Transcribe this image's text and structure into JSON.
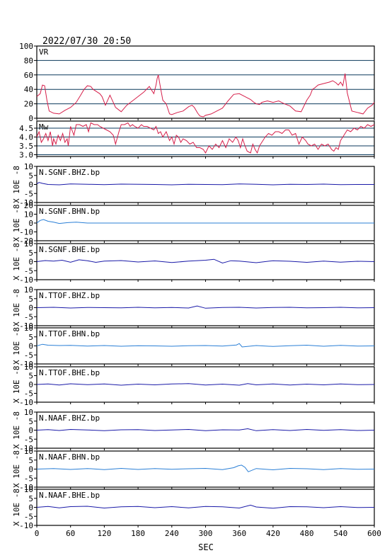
{
  "header": {
    "datetime": "2022/07/30 20:50"
  },
  "colors": {
    "frame": "#000000",
    "grid": "#0b3a5c",
    "vr_line": "#d61f4a",
    "mw_line": "#d61f4a",
    "trace_dark": "#1a1aa8",
    "trace_light": "#2a7fd6"
  },
  "chart_data": [
    {
      "type": "line",
      "title": "",
      "panel_label": "VR",
      "xlabel": "SEC",
      "xlim": [
        0,
        600
      ],
      "x_ticks": [
        0,
        60,
        120,
        180,
        240,
        300,
        360,
        420,
        480,
        540,
        600
      ],
      "ylim": [
        0,
        100
      ],
      "y_ticks": [
        0,
        20,
        40,
        60,
        80,
        100
      ],
      "grid": true,
      "series": [
        {
          "x": [
            0,
            6,
            10,
            14,
            18,
            22,
            30,
            40,
            50,
            60,
            70,
            78,
            84,
            90,
            96,
            100,
            104,
            108,
            112,
            116,
            122,
            130,
            140,
            150,
            160,
            170,
            180,
            190,
            200,
            208,
            212,
            214,
            216,
            220,
            224,
            230,
            236,
            240,
            250,
            260,
            270,
            276,
            280,
            286,
            290,
            296,
            300,
            310,
            320,
            330,
            340,
            350,
            360,
            370,
            380,
            386,
            390,
            396,
            400,
            410,
            420,
            430,
            440,
            450,
            460,
            470,
            480,
            486,
            490,
            494,
            500,
            510,
            520,
            526,
            532,
            536,
            540,
            544,
            548,
            552,
            560,
            570,
            580,
            588,
            596,
            600
          ],
          "y": [
            30,
            34,
            46,
            45,
            25,
            10,
            7,
            6,
            11,
            15,
            22,
            32,
            40,
            45,
            44,
            40,
            38,
            36,
            34,
            30,
            18,
            32,
            15,
            9,
            18,
            24,
            30,
            36,
            44,
            34,
            46,
            55,
            60,
            42,
            25,
            20,
            6,
            5,
            8,
            10,
            16,
            18,
            15,
            7,
            3,
            2,
            4,
            6,
            10,
            14,
            24,
            33,
            34,
            30,
            26,
            22,
            20,
            19,
            22,
            24,
            22,
            24,
            20,
            17,
            10,
            9,
            25,
            32,
            40,
            42,
            46,
            48,
            50,
            52,
            49,
            46,
            50,
            45,
            62,
            35,
            10,
            8,
            6,
            14,
            18,
            22
          ]
        }
      ]
    },
    {
      "type": "line",
      "panel_label": "Mw",
      "xlim": [
        0,
        600
      ],
      "ylim": [
        2.9,
        4.9
      ],
      "y_ticks": [
        3.0,
        3.5,
        4.0,
        4.5
      ],
      "grid": true,
      "series": [
        {
          "x": [
            0,
            4,
            8,
            12,
            16,
            20,
            24,
            28,
            30,
            34,
            38,
            42,
            46,
            50,
            54,
            56,
            60,
            66,
            70,
            76,
            82,
            88,
            92,
            96,
            102,
            108,
            112,
            118,
            124,
            130,
            136,
            140,
            146,
            150,
            156,
            162,
            166,
            170,
            174,
            180,
            186,
            190,
            196,
            202,
            208,
            212,
            216,
            220,
            224,
            230,
            236,
            240,
            244,
            248,
            252,
            256,
            260,
            266,
            272,
            278,
            284,
            290,
            296,
            300,
            306,
            312,
            318,
            324,
            330,
            336,
            342,
            348,
            354,
            358,
            362,
            366,
            370,
            374,
            380,
            384,
            388,
            392,
            396,
            400,
            406,
            412,
            418,
            424,
            430,
            436,
            442,
            448,
            454,
            460,
            466,
            472,
            478,
            482,
            488,
            494,
            500,
            506,
            512,
            518,
            524,
            528,
            532,
            536,
            540,
            546,
            552,
            558,
            564,
            570,
            576,
            582,
            588,
            594,
            600
          ],
          "y": [
            4.0,
            4.3,
            3.7,
            3.9,
            4.2,
            3.8,
            4.3,
            3.5,
            3.9,
            3.6,
            4.1,
            3.8,
            4.2,
            3.7,
            3.9,
            3.5,
            4.6,
            4.1,
            4.7,
            4.7,
            4.6,
            4.7,
            4.3,
            4.8,
            4.7,
            4.7,
            4.6,
            4.5,
            4.4,
            4.3,
            4.1,
            3.6,
            4.3,
            4.7,
            4.7,
            4.8,
            4.6,
            4.7,
            4.6,
            4.5,
            4.7,
            4.6,
            4.6,
            4.5,
            4.4,
            4.6,
            4.2,
            4.3,
            4.0,
            4.3,
            3.8,
            4.0,
            3.6,
            4.1,
            4.0,
            3.7,
            3.9,
            3.8,
            3.6,
            3.7,
            3.4,
            3.4,
            3.3,
            3.1,
            3.5,
            3.3,
            3.6,
            3.4,
            3.8,
            3.4,
            3.9,
            3.7,
            4.0,
            3.8,
            3.4,
            3.9,
            3.5,
            3.2,
            3.1,
            3.6,
            3.3,
            3.1,
            3.5,
            3.7,
            4.0,
            4.2,
            4.1,
            4.3,
            4.3,
            4.2,
            4.4,
            4.4,
            4.1,
            4.2,
            3.6,
            4.0,
            3.8,
            3.6,
            3.5,
            3.6,
            3.3,
            3.6,
            3.5,
            3.6,
            3.3,
            3.2,
            3.4,
            3.3,
            3.8,
            4.1,
            4.4,
            4.3,
            4.5,
            4.4,
            4.6,
            4.5,
            4.7,
            4.6,
            4.7
          ]
        }
      ]
    },
    {
      "type": "line",
      "panel_label": "N.SGNF.BHZ.bp",
      "ylabel": "X 10E -8",
      "ylim": [
        -10,
        10
      ],
      "y_ticks": [
        -10,
        -5,
        0,
        5,
        10
      ],
      "trace_color": "dark",
      "series": [
        {
          "x": [
            0,
            4,
            10,
            20,
            40,
            60,
            90,
            120,
            150,
            180,
            210,
            240,
            270,
            300,
            330,
            360,
            390,
            420,
            450,
            480,
            510,
            540,
            570,
            600
          ],
          "y": [
            0.3,
            1.1,
            0.6,
            0.0,
            -0.2,
            0.3,
            0.1,
            -0.1,
            0.2,
            0.1,
            0.0,
            -0.2,
            0.1,
            0.0,
            -0.1,
            0.3,
            0.1,
            -0.2,
            0.1,
            0.0,
            0.2,
            -0.1,
            0.0,
            0.0
          ]
        }
      ]
    },
    {
      "type": "line",
      "panel_label": "N.SGNF.BHN.bp",
      "ylabel": "X 10E -8",
      "ylim": [
        -20,
        20
      ],
      "y_ticks": [
        -20,
        -10,
        0,
        10,
        20
      ],
      "trace_color": "light",
      "series": [
        {
          "x": [
            0,
            6,
            12,
            20,
            30,
            40,
            55,
            70,
            90,
            120,
            180,
            240,
            300,
            360,
            420,
            480,
            540,
            600
          ],
          "y": [
            0.0,
            3.0,
            4.0,
            2.0,
            1.0,
            -0.5,
            0.5,
            1.0,
            0.0,
            0.0,
            0.0,
            0.0,
            0.0,
            0.0,
            0.0,
            0.0,
            0.0,
            0.0
          ]
        }
      ]
    },
    {
      "type": "line",
      "panel_label": "N.SGNF.BHE.bp",
      "ylabel": "X 10E -8",
      "ylim": [
        -10,
        10
      ],
      "y_ticks": [
        -10,
        -5,
        0,
        5,
        10
      ],
      "trace_color": "dark",
      "series": [
        {
          "x": [
            0,
            15,
            30,
            45,
            60,
            75,
            90,
            105,
            120,
            150,
            180,
            210,
            240,
            270,
            300,
            315,
            330,
            345,
            360,
            390,
            420,
            450,
            480,
            510,
            540,
            570,
            600
          ],
          "y": [
            0.0,
            0.6,
            0.3,
            0.8,
            -0.3,
            1.0,
            0.5,
            -0.4,
            0.3,
            0.6,
            -0.2,
            0.4,
            -0.5,
            0.3,
            0.8,
            1.3,
            -0.8,
            0.5,
            0.3,
            -0.6,
            0.5,
            0.2,
            -0.4,
            0.3,
            -0.3,
            0.2,
            0.0
          ]
        }
      ]
    },
    {
      "type": "line",
      "panel_label": "N.TTOF.BHZ.bp",
      "ylabel": "X 10E -8",
      "ylim": [
        -10,
        10
      ],
      "y_ticks": [
        -10,
        -5,
        0,
        5,
        10
      ],
      "trace_color": "dark",
      "series": [
        {
          "x": [
            0,
            30,
            60,
            90,
            120,
            150,
            180,
            210,
            240,
            270,
            285,
            300,
            330,
            360,
            390,
            420,
            450,
            480,
            510,
            540,
            570,
            600
          ],
          "y": [
            0.0,
            0.2,
            -0.2,
            0.1,
            0.0,
            -0.1,
            0.2,
            -0.1,
            0.1,
            -0.2,
            0.9,
            -0.3,
            0.1,
            0.2,
            -0.2,
            0.1,
            0.2,
            -0.1,
            0.0,
            0.2,
            -0.1,
            0.0
          ]
        }
      ]
    },
    {
      "type": "line",
      "panel_label": "N.TTOF.BHN.bp",
      "ylabel": "X 10E -8",
      "ylim": [
        -10,
        10
      ],
      "y_ticks": [
        -10,
        -5,
        0,
        5,
        10
      ],
      "trace_color": "light",
      "series": [
        {
          "x": [
            0,
            10,
            20,
            40,
            60,
            90,
            120,
            150,
            180,
            210,
            240,
            270,
            300,
            330,
            355,
            360,
            365,
            390,
            420,
            450,
            480,
            510,
            540,
            570,
            600
          ],
          "y": [
            0.0,
            0.9,
            0.4,
            0.2,
            0.3,
            -0.1,
            0.2,
            -0.2,
            0.1,
            0.0,
            -0.2,
            0.1,
            0.2,
            -0.1,
            0.5,
            1.3,
            -0.6,
            0.2,
            -0.3,
            0.1,
            0.4,
            -0.2,
            0.3,
            -0.1,
            0.0
          ]
        }
      ]
    },
    {
      "type": "line",
      "panel_label": "N.TTOF.BHE.bp",
      "ylabel": "X 10E -8",
      "ylim": [
        -10,
        10
      ],
      "y_ticks": [
        -10,
        -5,
        0,
        5,
        10
      ],
      "trace_color": "dark",
      "series": [
        {
          "x": [
            0,
            20,
            40,
            60,
            90,
            120,
            150,
            180,
            210,
            240,
            270,
            300,
            330,
            360,
            375,
            390,
            420,
            450,
            480,
            510,
            540,
            570,
            600
          ],
          "y": [
            0.0,
            0.3,
            -0.3,
            0.4,
            -0.1,
            0.3,
            -0.4,
            0.2,
            -0.2,
            0.3,
            0.5,
            -0.3,
            0.2,
            -0.4,
            0.5,
            -0.2,
            0.3,
            -0.3,
            0.2,
            -0.2,
            0.3,
            -0.1,
            0.0
          ]
        }
      ]
    },
    {
      "type": "line",
      "panel_label": "N.NAAF.BHZ.bp",
      "ylabel": "X 10E -8",
      "ylim": [
        -10,
        10
      ],
      "y_ticks": [
        -10,
        -5,
        0,
        5,
        10
      ],
      "trace_color": "dark",
      "series": [
        {
          "x": [
            0,
            20,
            40,
            60,
            90,
            120,
            150,
            180,
            210,
            240,
            270,
            300,
            330,
            360,
            375,
            390,
            420,
            450,
            480,
            510,
            540,
            570,
            600
          ],
          "y": [
            0.0,
            0.3,
            -0.2,
            0.4,
            0.1,
            -0.3,
            0.2,
            0.3,
            -0.2,
            0.1,
            0.4,
            -0.3,
            0.2,
            0.1,
            0.8,
            -0.3,
            0.3,
            -0.2,
            0.4,
            -0.1,
            0.3,
            -0.2,
            0.0
          ]
        }
      ]
    },
    {
      "type": "line",
      "panel_label": "N.NAAF.BHN.bp",
      "ylabel": "X 10E -8",
      "ylim": [
        -10,
        10
      ],
      "y_ticks": [
        -10,
        -5,
        0,
        5,
        10
      ],
      "trace_color": "light",
      "series": [
        {
          "x": [
            0,
            30,
            60,
            90,
            120,
            150,
            180,
            210,
            240,
            270,
            300,
            330,
            350,
            358,
            364,
            370,
            376,
            390,
            420,
            450,
            480,
            510,
            540,
            570,
            600
          ],
          "y": [
            0.0,
            0.3,
            -0.2,
            0.3,
            -0.3,
            0.4,
            -0.2,
            0.3,
            -0.1,
            0.2,
            0.4,
            -0.3,
            0.8,
            1.8,
            2.2,
            1.0,
            -1.5,
            0.3,
            -0.4,
            0.4,
            0.2,
            -0.3,
            0.3,
            -0.1,
            0.0
          ]
        }
      ]
    },
    {
      "type": "line",
      "panel_label": "N.NAAF.BHE.bp",
      "ylabel": "X 10E -8",
      "ylim": [
        -10,
        10
      ],
      "y_ticks": [
        -10,
        -5,
        0,
        5,
        10
      ],
      "trace_color": "dark",
      "series": [
        {
          "x": [
            0,
            20,
            40,
            60,
            90,
            120,
            150,
            180,
            210,
            240,
            270,
            300,
            330,
            360,
            380,
            390,
            420,
            450,
            480,
            510,
            540,
            570,
            600
          ],
          "y": [
            0.0,
            0.5,
            -0.3,
            0.4,
            0.6,
            -0.4,
            0.3,
            0.5,
            -0.2,
            0.4,
            -0.3,
            0.5,
            0.3,
            -0.4,
            1.2,
            0.2,
            -0.5,
            0.4,
            0.3,
            -0.2,
            0.4,
            -0.1,
            0.0
          ]
        }
      ]
    }
  ]
}
